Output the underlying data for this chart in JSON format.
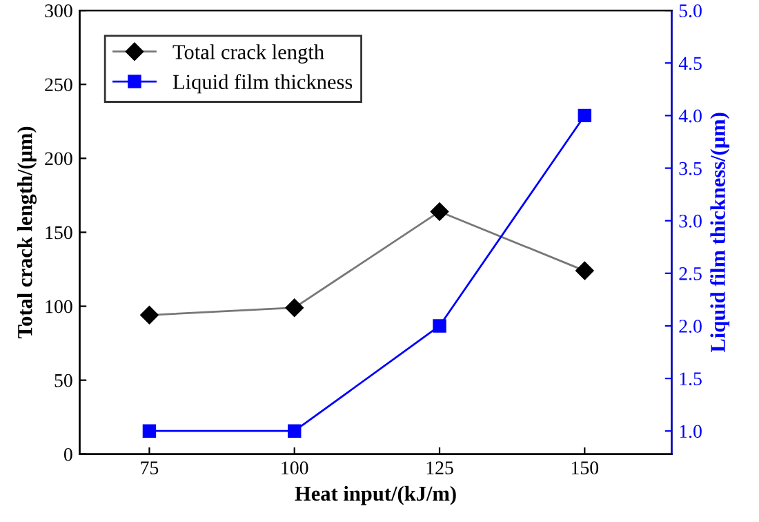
{
  "chart_data": {
    "type": "line",
    "xlabel": "Heat input/(kJ/m)",
    "ylabel": "Total crack length/(μm)",
    "y2label": "Liquid film thickness/(μm)",
    "x": [
      75,
      100,
      125,
      150
    ],
    "xlim": [
      63,
      165
    ],
    "xticks": [
      75,
      100,
      125,
      150
    ],
    "ylim": [
      0,
      300
    ],
    "yticks": [
      0,
      50,
      100,
      150,
      200,
      250,
      300
    ],
    "y2lim": [
      0.78,
      5.0
    ],
    "y2ticks": [
      {
        "value": 1.0,
        "label": "1.0"
      },
      {
        "value": 1.5,
        "label": "1.5"
      },
      {
        "value": 2.0,
        "label": "2.0"
      },
      {
        "value": 2.5,
        "label": "2.5"
      },
      {
        "value": 3.0,
        "label": "3.0"
      },
      {
        "value": 3.5,
        "label": "3.5"
      },
      {
        "value": 4.0,
        "label": "4.0"
      },
      {
        "value": 4.5,
        "label": "4.5"
      },
      {
        "value": 5.0,
        "label": "5.0"
      }
    ],
    "series": [
      {
        "name": "Total crack length",
        "color": "#000000",
        "marker": "diamond",
        "values": [
          94,
          99,
          164,
          124
        ]
      },
      {
        "name": "Liquid film thickness",
        "color": "#0000ff",
        "marker": "square",
        "axis": "y2",
        "values": [
          1.0,
          1.0,
          2.0,
          4.0
        ]
      }
    ],
    "legend": "top left",
    "grid": false,
    "line_style": "solid"
  }
}
